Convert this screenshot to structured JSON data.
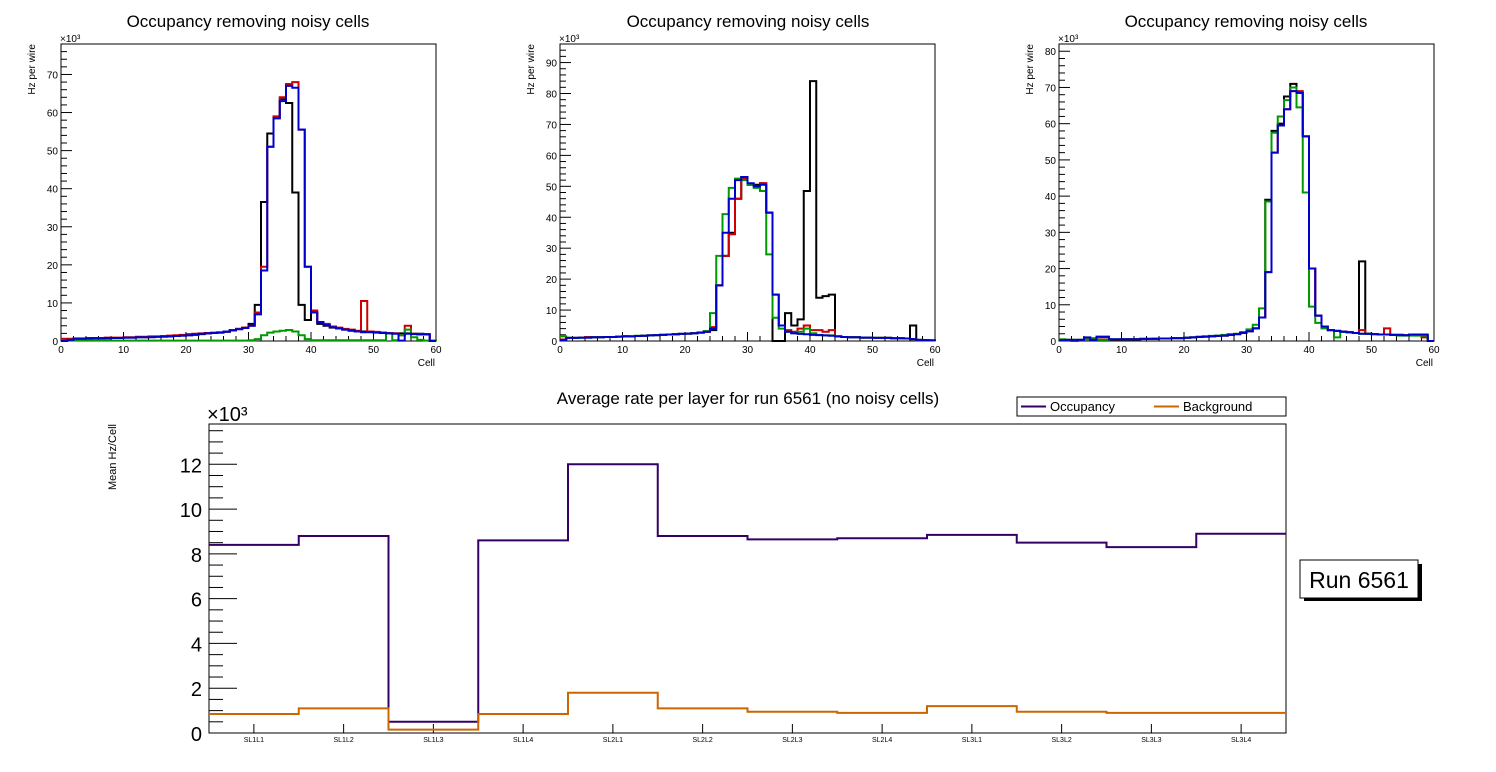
{
  "chart_data": [
    {
      "type": "histogram",
      "title": "Occupancy removing noisy cells",
      "xlabel": "Cell",
      "ylabel": "Hz per wire",
      "yexponent": "×10³",
      "xlim": [
        0,
        60
      ],
      "ylim": [
        0,
        78
      ],
      "xticks": [
        0,
        10,
        20,
        30,
        40,
        50,
        60
      ],
      "yticks": [
        0,
        10,
        20,
        30,
        40,
        50,
        60,
        70
      ],
      "bin_width": 1,
      "series": [
        {
          "name": "black",
          "color": "#000000",
          "values": [
            0.3,
            0.5,
            0.6,
            0.6,
            0.6,
            0.7,
            0.7,
            0.7,
            0.8,
            0.8,
            0.9,
            0.9,
            1.0,
            1.0,
            1.1,
            1.1,
            1.2,
            1.2,
            1.3,
            1.4,
            1.5,
            1.6,
            1.8,
            2.0,
            2.1,
            2.2,
            2.4,
            2.8,
            3.2,
            3.5,
            4.5,
            9.5,
            36.5,
            54.5,
            58.5,
            63.5,
            62.5,
            39.0,
            9.5,
            5.5,
            7.5,
            4.5,
            4.0,
            3.5,
            3.3,
            3.0,
            2.7,
            2.5,
            2.5,
            2.4,
            2.3,
            2.2,
            2.1,
            2.0,
            2.0,
            2.0,
            1.9,
            1.9,
            1.8,
            0.1
          ]
        },
        {
          "name": "red",
          "color": "#cc0000",
          "values": [
            0.6,
            0.6,
            0.7,
            0.7,
            0.8,
            0.8,
            0.8,
            0.9,
            0.9,
            0.9,
            1.0,
            1.0,
            1.1,
            1.1,
            1.2,
            1.2,
            1.3,
            1.4,
            1.5,
            1.6,
            1.8,
            1.9,
            2.0,
            2.1,
            2.2,
            2.3,
            2.5,
            2.9,
            3.2,
            3.5,
            4.0,
            7.5,
            19.5,
            51.0,
            59.0,
            64.0,
            67.5,
            68.0,
            55.5,
            19.5,
            8.0,
            5.0,
            4.5,
            3.8,
            3.5,
            3.2,
            3.0,
            2.7,
            10.5,
            2.5,
            2.4,
            2.2,
            2.1,
            2.0,
            1.5,
            4.0,
            1.9,
            1.8,
            1.8,
            0.1
          ]
        },
        {
          "name": "green",
          "color": "#009900",
          "values": [
            0.1,
            0.1,
            0.1,
            0.1,
            0.1,
            0.1,
            0.1,
            0.1,
            0.1,
            0.1,
            0.1,
            0.1,
            0.1,
            0.1,
            0.1,
            0.1,
            0.1,
            0.1,
            0.1,
            0.1,
            0.1,
            0.1,
            0.1,
            0.1,
            0.1,
            0.1,
            0.1,
            0.1,
            0.1,
            0.1,
            0.2,
            0.5,
            1.5,
            2.2,
            2.5,
            2.7,
            2.9,
            2.5,
            1.5,
            0.5,
            0.2,
            0.2,
            0.2,
            0.2,
            0.2,
            0.2,
            0.2,
            0.2,
            0.2,
            0.2,
            0.2,
            0.2,
            2.0,
            0.2,
            1.5,
            3.0,
            1.0,
            0.3,
            0.1,
            0.1
          ]
        },
        {
          "name": "blue",
          "color": "#0000cc",
          "values": [
            0.0,
            0.3,
            0.6,
            0.6,
            0.7,
            0.7,
            0.7,
            0.8,
            0.8,
            0.8,
            0.9,
            0.9,
            1.0,
            1.0,
            1.0,
            1.1,
            1.1,
            1.2,
            1.3,
            1.4,
            1.5,
            1.7,
            1.9,
            2.0,
            2.1,
            2.2,
            2.5,
            2.8,
            3.1,
            3.4,
            4.0,
            7.0,
            18.5,
            51.0,
            58.5,
            63.0,
            67.0,
            66.5,
            55.5,
            19.5,
            7.5,
            5.0,
            4.2,
            3.6,
            3.3,
            3.0,
            2.8,
            2.5,
            2.3,
            2.3,
            2.2,
            2.1,
            2.0,
            1.9,
            0.1,
            1.9,
            1.8,
            1.7,
            1.7,
            0.0
          ]
        }
      ]
    },
    {
      "type": "histogram",
      "title": "Occupancy removing noisy cells",
      "xlabel": "Cell",
      "ylabel": "Hz per wire",
      "yexponent": "×10³",
      "xlim": [
        0,
        60
      ],
      "ylim": [
        0,
        96
      ],
      "xticks": [
        0,
        10,
        20,
        30,
        40,
        50,
        60
      ],
      "yticks": [
        0,
        10,
        20,
        30,
        40,
        50,
        60,
        70,
        80,
        90
      ],
      "bin_width": 1,
      "series": [
        {
          "name": "black",
          "color": "#000000",
          "values": [
            0.5,
            1.0,
            1.0,
            1.1,
            1.1,
            1.2,
            1.2,
            1.3,
            1.3,
            1.4,
            1.5,
            1.5,
            1.6,
            1.7,
            1.8,
            1.9,
            2.0,
            2.1,
            2.2,
            2.3,
            2.4,
            2.5,
            2.7,
            3.0,
            3.5,
            18.0,
            27.5,
            35.0,
            46.0,
            53.0,
            50.5,
            50.5,
            51.0,
            41.5,
            0.0,
            0.0,
            9.0,
            5.0,
            7.0,
            48.5,
            84.0,
            14.0,
            14.5,
            15.0,
            1.5,
            1.3,
            1.2,
            1.2,
            1.1,
            1.1,
            1.0,
            1.0,
            1.0,
            0.9,
            0.9,
            0.8,
            5.0,
            0.4,
            0.3,
            0.2
          ]
        },
        {
          "name": "red",
          "color": "#cc0000",
          "values": [
            0.5,
            1.0,
            1.0,
            1.1,
            1.3,
            1.2,
            1.2,
            1.3,
            1.3,
            1.4,
            1.5,
            1.5,
            1.6,
            1.7,
            1.8,
            1.9,
            2.0,
            2.1,
            2.2,
            2.3,
            2.4,
            2.5,
            2.7,
            3.0,
            4.5,
            18.0,
            27.5,
            34.5,
            46.0,
            52.5,
            50.5,
            50.0,
            51.0,
            41.5,
            15.0,
            5.0,
            3.5,
            3.0,
            4.0,
            5.0,
            3.5,
            3.5,
            3.0,
            3.5,
            1.5,
            1.3,
            1.2,
            1.2,
            1.1,
            1.1,
            1.0,
            1.0,
            1.0,
            0.9,
            0.9,
            0.8,
            0.6,
            0.3,
            0.3,
            0.2
          ]
        },
        {
          "name": "green",
          "color": "#009900",
          "values": [
            1.5,
            1.0,
            1.0,
            1.1,
            1.1,
            1.2,
            1.2,
            1.3,
            1.3,
            1.4,
            1.6,
            1.5,
            1.7,
            1.7,
            1.8,
            1.9,
            2.0,
            2.1,
            2.2,
            2.3,
            2.4,
            2.5,
            2.8,
            3.2,
            9.0,
            27.5,
            41.0,
            49.5,
            52.5,
            52.0,
            50.5,
            49.5,
            48.5,
            28.0,
            7.5,
            4.0,
            3.0,
            2.5,
            3.0,
            4.0,
            2.5,
            2.0,
            1.8,
            1.8,
            1.5,
            1.3,
            1.2,
            1.2,
            1.1,
            1.1,
            1.0,
            1.0,
            1.0,
            0.9,
            0.9,
            0.8,
            0.6,
            0.3,
            0.3,
            0.2
          ]
        },
        {
          "name": "blue",
          "color": "#0000cc",
          "values": [
            0.3,
            1.0,
            1.0,
            1.1,
            1.1,
            1.2,
            1.2,
            1.3,
            1.3,
            1.4,
            1.5,
            1.5,
            1.6,
            1.7,
            1.8,
            1.9,
            2.0,
            2.1,
            2.2,
            2.3,
            2.4,
            2.5,
            2.7,
            3.0,
            4.0,
            18.0,
            35.0,
            46.0,
            52.0,
            53.0,
            51.0,
            50.0,
            50.5,
            41.5,
            15.0,
            5.0,
            3.0,
            2.5,
            2.3,
            2.2,
            2.0,
            1.9,
            1.8,
            1.7,
            1.5,
            1.3,
            1.2,
            1.2,
            1.1,
            1.1,
            1.0,
            1.0,
            1.0,
            0.9,
            0.9,
            0.8,
            0.6,
            0.3,
            0.3,
            0.2
          ]
        }
      ]
    },
    {
      "type": "histogram",
      "title": "Occupancy removing noisy cells",
      "xlabel": "Cell",
      "ylabel": "Hz per wire",
      "yexponent": "×10³",
      "xlim": [
        0,
        60
      ],
      "ylim": [
        0,
        82
      ],
      "xticks": [
        0,
        10,
        20,
        30,
        40,
        50,
        60
      ],
      "yticks": [
        0,
        10,
        20,
        30,
        40,
        50,
        60,
        70,
        80
      ],
      "bin_width": 1,
      "series": [
        {
          "name": "black",
          "color": "#000000",
          "values": [
            0.3,
            0.3,
            0.3,
            0.3,
            0.8,
            0.5,
            1.0,
            1.0,
            0.4,
            0.4,
            0.5,
            0.5,
            0.5,
            0.6,
            0.6,
            0.6,
            0.7,
            0.7,
            0.8,
            0.8,
            0.9,
            1.0,
            1.1,
            1.2,
            1.3,
            1.4,
            1.5,
            1.7,
            1.9,
            2.2,
            2.7,
            3.5,
            6.5,
            39.0,
            58.0,
            60.0,
            67.5,
            71.0,
            68.5,
            56.5,
            20.0,
            7.0,
            4.0,
            3.0,
            2.8,
            2.6,
            2.4,
            2.2,
            22.0,
            2.0,
            1.9,
            1.8,
            1.8,
            1.7,
            1.7,
            1.6,
            1.6,
            1.6,
            1.5,
            0.0
          ]
        },
        {
          "name": "red",
          "color": "#cc0000",
          "values": [
            0.3,
            0.3,
            0.0,
            0.3,
            0.8,
            0.5,
            1.0,
            1.0,
            0.4,
            0.4,
            0.5,
            0.5,
            0.5,
            0.6,
            0.6,
            0.7,
            0.7,
            0.7,
            0.8,
            0.8,
            0.9,
            1.0,
            1.1,
            1.2,
            1.3,
            1.4,
            1.5,
            1.7,
            1.9,
            2.2,
            2.7,
            3.5,
            6.5,
            19.0,
            52.0,
            59.5,
            64.0,
            69.0,
            69.0,
            56.5,
            20.0,
            7.0,
            4.0,
            3.0,
            2.8,
            2.6,
            2.4,
            2.2,
            3.0,
            2.0,
            1.9,
            1.8,
            3.5,
            1.7,
            1.7,
            1.6,
            1.6,
            1.6,
            1.0,
            0.0
          ]
        },
        {
          "name": "green",
          "color": "#009900",
          "values": [
            0.5,
            0.3,
            0.3,
            0.3,
            0.5,
            0.8,
            0.3,
            0.3,
            0.5,
            0.5,
            0.5,
            0.5,
            0.5,
            0.6,
            0.6,
            0.6,
            0.7,
            0.7,
            0.8,
            0.8,
            0.9,
            1.0,
            1.2,
            1.3,
            1.4,
            1.5,
            1.7,
            1.9,
            2.0,
            2.5,
            3.2,
            4.5,
            9.0,
            38.5,
            57.5,
            62.0,
            66.5,
            70.0,
            64.5,
            41.0,
            9.5,
            5.0,
            3.5,
            3.0,
            1.0,
            2.5,
            2.4,
            2.2,
            2.0,
            2.0,
            1.9,
            1.8,
            1.8,
            1.7,
            1.5,
            1.5,
            1.5,
            1.5,
            1.5,
            0.0
          ]
        },
        {
          "name": "blue",
          "color": "#0000cc",
          "values": [
            0.2,
            0.3,
            0.3,
            0.3,
            1.0,
            0.3,
            1.2,
            1.2,
            0.5,
            0.5,
            0.5,
            0.5,
            0.5,
            0.6,
            0.6,
            0.6,
            0.7,
            0.7,
            0.8,
            0.8,
            0.9,
            1.0,
            1.1,
            1.2,
            1.3,
            1.4,
            1.5,
            1.7,
            1.9,
            2.2,
            2.7,
            3.5,
            6.5,
            19.0,
            52.0,
            59.5,
            64.0,
            69.0,
            68.5,
            56.5,
            20.0,
            7.0,
            4.0,
            3.0,
            2.8,
            2.6,
            2.4,
            2.2,
            2.0,
            2.0,
            1.9,
            1.8,
            1.8,
            1.7,
            1.7,
            1.6,
            1.8,
            1.8,
            1.8,
            0.0
          ]
        }
      ]
    },
    {
      "type": "histogram",
      "title": "Average rate per layer for run 6561 (no noisy cells)",
      "xlabel": "",
      "ylabel": "Mean Hz/Cell",
      "yexponent": "×10³",
      "ylim": [
        0,
        13.8
      ],
      "yticks": [
        0,
        2,
        4,
        6,
        8,
        10,
        12
      ],
      "categories": [
        "SL1L1",
        "SL1L2",
        "SL1L3",
        "SL1L4",
        "SL2L1",
        "SL2L2",
        "SL2L3",
        "SL2L4",
        "SL3L1",
        "SL3L2",
        "SL3L3",
        "SL3L4"
      ],
      "series": [
        {
          "name": "Occupancy",
          "color": "#330066",
          "values": [
            8.4,
            8.8,
            0.5,
            8.6,
            12.0,
            8.8,
            8.65,
            8.7,
            8.85,
            8.5,
            8.3,
            8.9
          ]
        },
        {
          "name": "Background",
          "color": "#cc6600",
          "values": [
            0.85,
            1.1,
            0.15,
            0.85,
            1.8,
            1.1,
            0.95,
            0.9,
            1.2,
            0.95,
            0.9,
            0.9
          ]
        }
      ],
      "legend": {
        "position": "top-right",
        "entries": [
          "Occupancy",
          "Background"
        ]
      },
      "annotation": "Run 6561"
    }
  ]
}
